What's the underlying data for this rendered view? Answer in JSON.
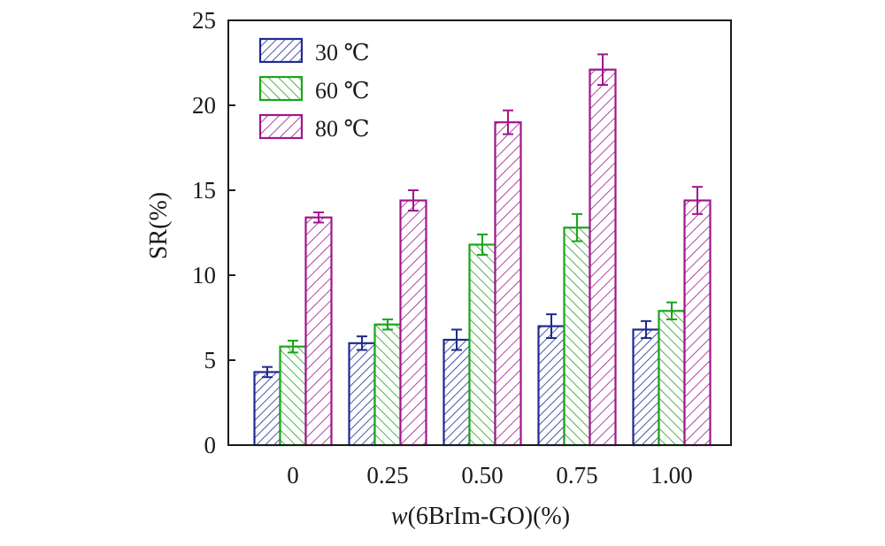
{
  "chart_data": {
    "type": "bar",
    "title": "",
    "xlabel_italic": "w",
    "xlabel_rest": "(6BrIm-GO)(%)",
    "ylabel": "SR(%)",
    "categories": [
      "0",
      "0.25",
      "0.50",
      "0.75",
      "1.00"
    ],
    "ylim": [
      0,
      25
    ],
    "yticks": [
      0,
      5,
      10,
      15,
      20,
      25
    ],
    "legend_position": "top-left",
    "series": [
      {
        "name": "30 ℃",
        "color": "#1f2a8f",
        "hatch": "backslash",
        "values": [
          4.3,
          6.0,
          6.2,
          7.0,
          6.8
        ],
        "errors": [
          0.3,
          0.4,
          0.6,
          0.7,
          0.5
        ]
      },
      {
        "name": "60 ℃",
        "color": "#1aa51a",
        "hatch": "slash",
        "values": [
          5.8,
          7.1,
          11.8,
          12.8,
          7.9
        ],
        "errors": [
          0.35,
          0.3,
          0.6,
          0.8,
          0.5
        ]
      },
      {
        "name": "80 ℃",
        "color": "#a0168c",
        "hatch": "backslash",
        "values": [
          13.4,
          14.4,
          19.0,
          22.1,
          14.4
        ],
        "errors": [
          0.3,
          0.6,
          0.7,
          0.9,
          0.8
        ]
      }
    ]
  }
}
